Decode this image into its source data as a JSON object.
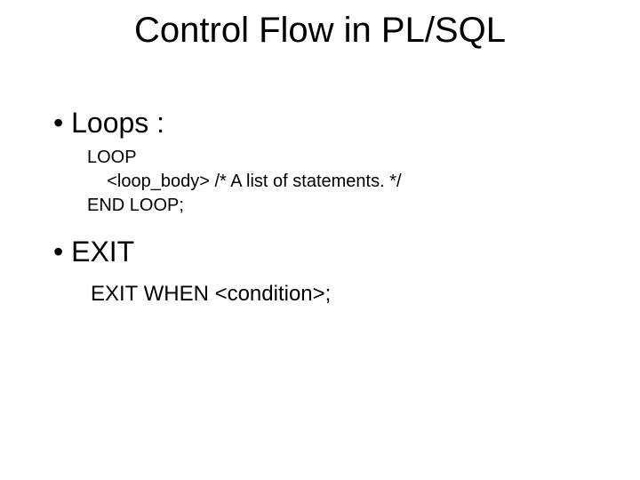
{
  "title": "Control Flow in PL/SQL",
  "bullets": {
    "loops": "Loops :",
    "exit": "EXIT"
  },
  "code": {
    "line1": "LOOP",
    "line2": "    <loop_body> /* A list of statements. */",
    "line3": "END LOOP;"
  },
  "exit_when": "EXIT WHEN <condition>;",
  "colors": {
    "background": "#ffffff",
    "text": "#000000"
  },
  "fonts": {
    "family": "Arial",
    "title_size_pt": 40,
    "bullet_size_pt": 32,
    "code_size_pt": 20,
    "exit_size_pt": 24
  }
}
